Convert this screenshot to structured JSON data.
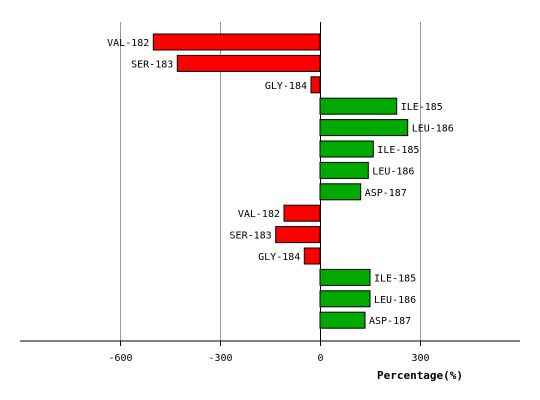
{
  "chart_data": {
    "type": "bar",
    "orientation": "horizontal",
    "xlabel": "Percentage(%)",
    "ylabel": "",
    "title": "",
    "xlim": [
      -900,
      600
    ],
    "xticks": [
      -600,
      -300,
      0,
      300
    ],
    "xtick_labels": [
      "-600",
      "-300",
      "0",
      "300"
    ],
    "grid": "vertical",
    "legend": "none",
    "colors": {
      "negative": "#ff0000",
      "positive": "#00aa00",
      "outline": "#000000",
      "grid": "#999999"
    },
    "categories": [
      "VAL-182",
      "SER-183",
      "GLY-184",
      "ILE-185",
      "LEU-186",
      "ILE-185",
      "LEU-186",
      "ASP-187",
      "VAL-182",
      "SER-183",
      "GLY-184",
      "ILE-185",
      "LEU-186",
      "ASP-187"
    ],
    "values": [
      -500,
      -428,
      -27,
      230,
      263,
      160,
      145,
      122,
      -108,
      -133,
      -47,
      150,
      150,
      135
    ]
  }
}
